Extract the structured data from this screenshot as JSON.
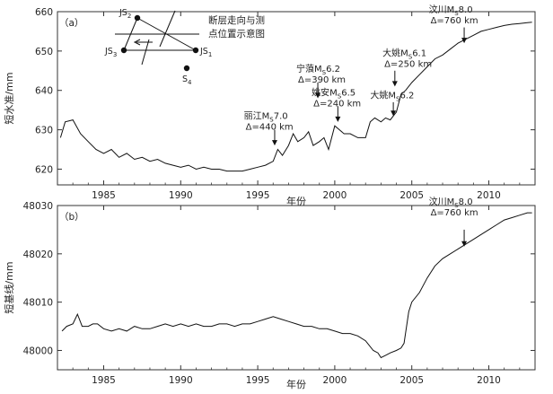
{
  "chart_data": [
    {
      "type": "line",
      "panel_label": "（a）",
      "ylabel": "短水准/mm",
      "xlabel": "年份",
      "xlim": [
        1982.0,
        2013.0
      ],
      "ylim": [
        616,
        660
      ],
      "xticks": [
        1985,
        1990,
        1995,
        2000,
        2005,
        2010
      ],
      "yticks": [
        620,
        630,
        640,
        650,
        660
      ],
      "series": [
        {
          "values": [
            [
              1982.2,
              628
            ],
            [
              1982.5,
              632
            ],
            [
              1983.0,
              632.5
            ],
            [
              1983.5,
              629
            ],
            [
              1984.0,
              627
            ],
            [
              1984.5,
              625
            ],
            [
              1985.0,
              624
            ],
            [
              1985.5,
              625
            ],
            [
              1986.0,
              623
            ],
            [
              1986.5,
              624
            ],
            [
              1987.0,
              622.5
            ],
            [
              1987.5,
              623
            ],
            [
              1988.0,
              622
            ],
            [
              1988.5,
              622.5
            ],
            [
              1989.0,
              621.5
            ],
            [
              1989.5,
              621
            ],
            [
              1990.0,
              620.5
            ],
            [
              1990.5,
              621
            ],
            [
              1991.0,
              620
            ],
            [
              1991.5,
              620.5
            ],
            [
              1992.0,
              620
            ],
            [
              1992.5,
              620
            ],
            [
              1993.0,
              619.5
            ],
            [
              1993.5,
              619.5
            ],
            [
              1994.0,
              619.5
            ],
            [
              1994.5,
              620
            ],
            [
              1995.0,
              620.5
            ],
            [
              1995.5,
              621
            ],
            [
              1996.0,
              622
            ],
            [
              1996.3,
              625
            ],
            [
              1996.6,
              623.5
            ],
            [
              1997.0,
              626
            ],
            [
              1997.3,
              629
            ],
            [
              1997.6,
              627
            ],
            [
              1998.0,
              628
            ],
            [
              1998.3,
              629.5
            ],
            [
              1998.6,
              626
            ],
            [
              1999.0,
              627
            ],
            [
              1999.3,
              628
            ],
            [
              1999.6,
              625
            ],
            [
              2000.0,
              631
            ],
            [
              2000.3,
              630
            ],
            [
              2000.6,
              629
            ],
            [
              2001.0,
              629
            ],
            [
              2001.5,
              628
            ],
            [
              2002.0,
              628
            ],
            [
              2002.3,
              632
            ],
            [
              2002.6,
              633
            ],
            [
              2003.0,
              632
            ],
            [
              2003.3,
              633
            ],
            [
              2003.6,
              632.5
            ],
            [
              2004.0,
              634.5
            ],
            [
              2004.3,
              639
            ],
            [
              2004.6,
              640
            ],
            [
              2005.0,
              642
            ],
            [
              2005.5,
              644
            ],
            [
              2006.0,
              646
            ],
            [
              2006.5,
              648
            ],
            [
              2007.0,
              649
            ],
            [
              2007.5,
              650.5
            ],
            [
              2008.0,
              652
            ],
            [
              2008.5,
              653
            ],
            [
              2009.0,
              654
            ],
            [
              2009.5,
              655
            ],
            [
              2010.0,
              655.5
            ],
            [
              2010.5,
              656
            ],
            [
              2011.0,
              656.5
            ],
            [
              2011.5,
              656.8
            ],
            [
              2012.0,
              657
            ],
            [
              2012.5,
              657.2
            ],
            [
              2012.8,
              657.3
            ]
          ]
        }
      ],
      "annotations": [
        {
          "lines": [
            "丽江M",
            "S",
            "7.0"
          ],
          "delta": "Δ=440 km",
          "x": 1996.1,
          "y_tip": 626,
          "y_base": 630,
          "text_x": 1994.1,
          "text_y": 630
        },
        {
          "lines": [
            "姚安M",
            "S",
            "6.5"
          ],
          "delta": "Δ=240 km",
          "x": 2000.2,
          "y_tip": 632,
          "y_base": 636,
          "text_x": 1998.5,
          "text_y": 636
        },
        {
          "lines": [
            "宁蒗M",
            "S",
            "6.2"
          ],
          "delta": "Δ=390 km",
          "x": 1998.9,
          "y_tip": 638,
          "y_base": 642,
          "text_x": 1997.5,
          "text_y": 642
        },
        {
          "lines": [
            "大姚M",
            "S",
            "6.2"
          ],
          "delta": "",
          "x": 2003.8,
          "y_tip": 633.5,
          "y_base": 637,
          "text_x": 2002.3,
          "text_y": 638
        },
        {
          "lines": [
            "大姚M",
            "S",
            "6.1"
          ],
          "delta": "Δ=250 km",
          "x": 2003.9,
          "y_tip": 641,
          "y_base": 645,
          "text_x": 2003.1,
          "text_y": 646
        },
        {
          "lines": [
            "汶川M",
            "S",
            "8.0"
          ],
          "delta": "Δ=760 km",
          "x": 2008.4,
          "y_tip": 652,
          "y_base": 656,
          "text_x": 2006.1,
          "text_y": 657
        }
      ],
      "inset": {
        "title_line1": "断层走向与测",
        "title_line2": "点位置示意图",
        "points": [
          "JS",
          "JS",
          "JS",
          "S"
        ],
        "subs": [
          "2",
          "3",
          "1",
          "4"
        ]
      }
    },
    {
      "type": "line",
      "panel_label": "（b）",
      "ylabel": "短基线/mm",
      "xlabel": "年份",
      "xlim": [
        1982.0,
        2013.0
      ],
      "ylim": [
        47996,
        48030
      ],
      "xticks": [
        1985,
        1990,
        1995,
        2000,
        2005,
        2010
      ],
      "yticks": [
        48000,
        48010,
        48020,
        48030
      ],
      "series": [
        {
          "values": [
            [
              1982.3,
              48004
            ],
            [
              1982.6,
              48005
            ],
            [
              1983.0,
              48005.5
            ],
            [
              1983.3,
              48007.5
            ],
            [
              1983.6,
              48005
            ],
            [
              1984.0,
              48005
            ],
            [
              1984.3,
              48005.5
            ],
            [
              1984.6,
              48005.5
            ],
            [
              1985.0,
              48004.5
            ],
            [
              1985.5,
              48004
            ],
            [
              1986.0,
              48004.5
            ],
            [
              1986.5,
              48004
            ],
            [
              1987.0,
              48005
            ],
            [
              1987.5,
              48004.5
            ],
            [
              1988.0,
              48004.5
            ],
            [
              1988.5,
              48005
            ],
            [
              1989.0,
              48005.5
            ],
            [
              1989.5,
              48005
            ],
            [
              1990.0,
              48005.5
            ],
            [
              1990.5,
              48005
            ],
            [
              1991.0,
              48005.5
            ],
            [
              1991.5,
              48005
            ],
            [
              1992.0,
              48005
            ],
            [
              1992.5,
              48005.5
            ],
            [
              1993.0,
              48005.5
            ],
            [
              1993.5,
              48005
            ],
            [
              1994.0,
              48005.5
            ],
            [
              1994.5,
              48005.5
            ],
            [
              1995.0,
              48006
            ],
            [
              1995.5,
              48006.5
            ],
            [
              1996.0,
              48007
            ],
            [
              1996.5,
              48006.5
            ],
            [
              1997.0,
              48006
            ],
            [
              1997.5,
              48005.5
            ],
            [
              1998.0,
              48005
            ],
            [
              1998.5,
              48005
            ],
            [
              1999.0,
              48004.5
            ],
            [
              1999.5,
              48004.5
            ],
            [
              2000.0,
              48004
            ],
            [
              2000.5,
              48003.5
            ],
            [
              2001.0,
              48003.5
            ],
            [
              2001.5,
              48003
            ],
            [
              2002.0,
              48002
            ],
            [
              2002.5,
              48000
            ],
            [
              2002.8,
              47999.5
            ],
            [
              2003.0,
              47998.5
            ],
            [
              2003.3,
              47999
            ],
            [
              2003.6,
              47999.5
            ],
            [
              2004.0,
              48000
            ],
            [
              2004.3,
              48000.5
            ],
            [
              2004.5,
              48001.5
            ],
            [
              2004.8,
              48008
            ],
            [
              2005.0,
              48010
            ],
            [
              2005.5,
              48012
            ],
            [
              2006.0,
              48015
            ],
            [
              2006.5,
              48017.5
            ],
            [
              2007.0,
              48019
            ],
            [
              2007.5,
              48020
            ],
            [
              2008.0,
              48021
            ],
            [
              2008.5,
              48022
            ],
            [
              2009.0,
              48023
            ],
            [
              2009.5,
              48024
            ],
            [
              2010.0,
              48025
            ],
            [
              2010.5,
              48026
            ],
            [
              2011.0,
              48027
            ],
            [
              2011.5,
              48027.5
            ],
            [
              2012.0,
              48028
            ],
            [
              2012.5,
              48028.5
            ],
            [
              2012.8,
              48028.5
            ]
          ]
        }
      ],
      "annotations": [
        {
          "lines": [
            "汶川M",
            "S",
            "8.0"
          ],
          "delta": "Δ=760 km",
          "x": 2008.4,
          "y_tip": 48021.5,
          "y_base": 48025,
          "text_x": 2006.1,
          "text_y": 48028
        }
      ]
    }
  ]
}
